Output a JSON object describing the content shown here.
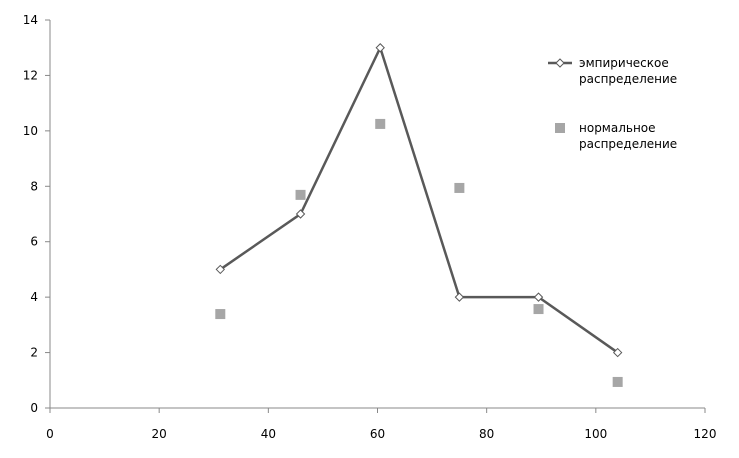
{
  "chart_data": {
    "type": "line",
    "x": [
      31.2,
      45.9,
      60.5,
      75,
      89.5,
      104
    ],
    "series": [
      {
        "name": "эмпирическое распределение",
        "color": "#595959",
        "style": "line",
        "values": [
          5,
          7,
          13,
          4,
          4,
          2
        ]
      },
      {
        "name": "нормальное распределение",
        "color": "#a6a6a6",
        "style": "markers",
        "values": [
          3.39,
          7.69,
          10.25,
          7.94,
          3.57,
          0.94
        ]
      }
    ],
    "xlim": [
      0,
      120
    ],
    "xticks": [
      0,
      20,
      40,
      60,
      80,
      100,
      120
    ],
    "ylim": [
      0,
      14
    ],
    "yticks": [
      0,
      2,
      4,
      6,
      8,
      10,
      12,
      14
    ],
    "grid": false,
    "legend": "right"
  }
}
